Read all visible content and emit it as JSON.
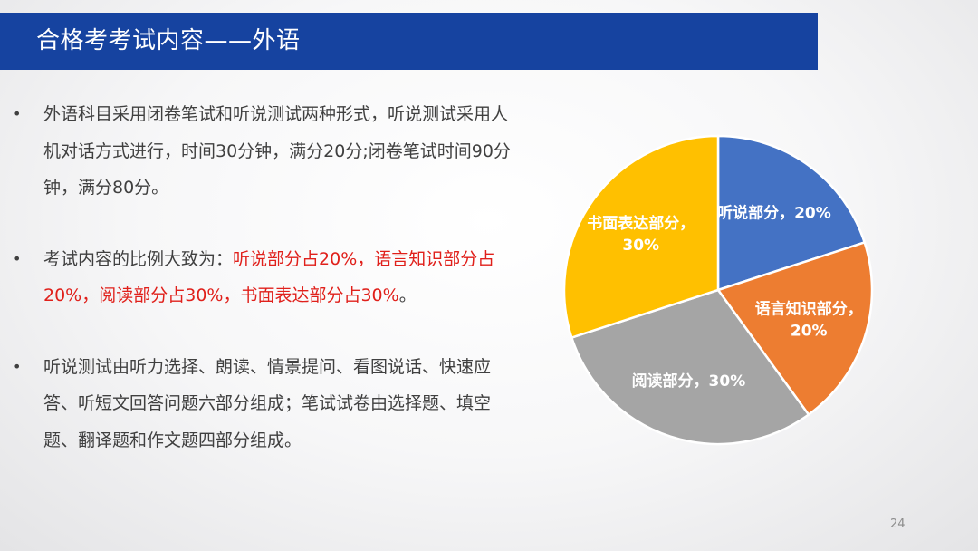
{
  "slide": {
    "title": "合格考考试内容——外语",
    "page_number": "24"
  },
  "bullets": [
    {
      "marker": "•",
      "text": "外语科目采用闭卷笔试和听说测试两种形式，听说测试采用人机对话方式进行，时间30分钟，满分20分;闭卷笔试时间90分钟，满分80分。"
    },
    {
      "marker": "•",
      "text_plain": "考试内容的比例大致为：",
      "text_red": "听说部分占20%，语言知识部分占20%，阅读部分占30%，书面表达部分占30%",
      "text_end": "。"
    },
    {
      "marker": "•",
      "text": "听说测试由听力选择、朗读、情景提问、看图说话、快速应答、听短文回答问题六部分组成；笔试试卷由选择题、填空题、翻译题和作文题四部分组成。"
    }
  ],
  "colors": {
    "header_bg": "#1643a0",
    "highlight_text": "#e0201b"
  },
  "chart_data": {
    "type": "pie",
    "categories": [
      "听说部分",
      "语言知识部分",
      "阅读部分",
      "书面表达部分"
    ],
    "values": [
      20,
      20,
      30,
      30
    ],
    "unit": "%",
    "start_angle_deg": 0,
    "direction": "clockwise",
    "colors": [
      "#4472c4",
      "#ed7d31",
      "#a5a5a5",
      "#ffc000"
    ],
    "data_labels": [
      [
        "听说部分，20%"
      ],
      [
        "语言知识部分，",
        "20%"
      ],
      [
        "阅读部分，30%"
      ],
      [
        "书面表达部分，",
        "30%"
      ]
    ],
    "legend": "none"
  }
}
